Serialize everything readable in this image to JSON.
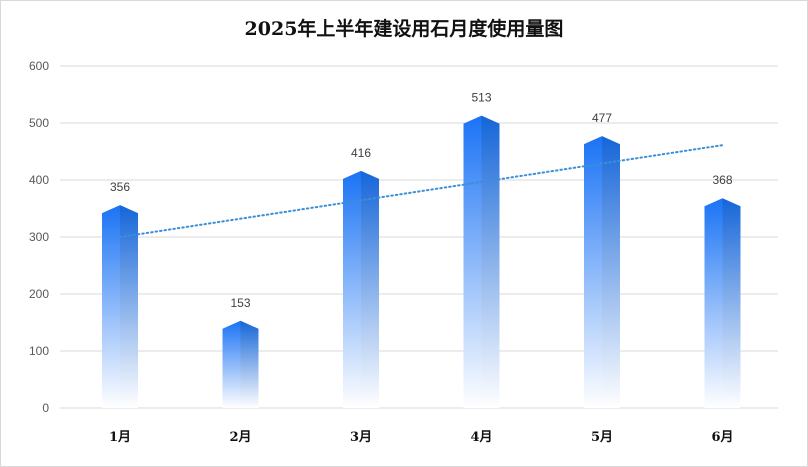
{
  "chart_data": {
    "type": "bar",
    "title": "2025年上半年建设用石月度使用量图",
    "categories": [
      "1月",
      "2月",
      "3月",
      "4月",
      "5月",
      "6月"
    ],
    "values": [
      356,
      153,
      416,
      513,
      477,
      368
    ],
    "ylim": [
      0,
      600
    ],
    "yticks": [
      0,
      100,
      200,
      300,
      400,
      500,
      600
    ],
    "grid": true,
    "legend": "none",
    "trendline": {
      "type": "linear",
      "style": "dotted"
    },
    "colors": {
      "bar_top": "#1a73f5",
      "bar_dark": "#1565d8",
      "bar_bottom": "#ffffff",
      "grid": "#d9d9d9",
      "trend": "#3b8ed8"
    }
  }
}
